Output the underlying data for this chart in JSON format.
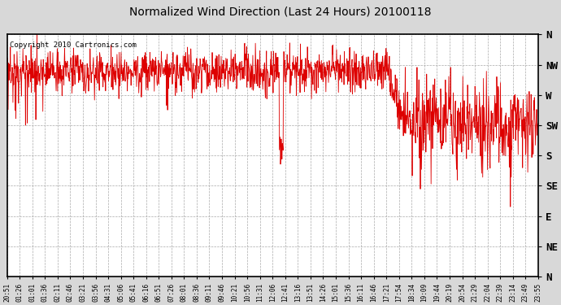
{
  "title": "Normalized Wind Direction (Last 24 Hours) 20100118",
  "copyright_text": "Copyright 2010 Cartronics.com",
  "background_color": "#d8d8d8",
  "plot_bg_color": "#ffffff",
  "line_color": "#dd0000",
  "line_width": 0.6,
  "ytick_labels": [
    "N",
    "NW",
    "W",
    "SW",
    "S",
    "SE",
    "E",
    "NE",
    "N"
  ],
  "ytick_values": [
    0,
    1,
    2,
    3,
    4,
    5,
    6,
    7,
    8
  ],
  "ylim": [
    0,
    8
  ],
  "xtick_labels": [
    "20:51",
    "01:26",
    "01:01",
    "01:36",
    "02:11",
    "02:46",
    "03:21",
    "03:56",
    "04:31",
    "05:06",
    "05:41",
    "06:16",
    "06:51",
    "07:26",
    "08:01",
    "08:36",
    "09:11",
    "09:46",
    "10:21",
    "10:56",
    "11:31",
    "12:06",
    "12:41",
    "13:16",
    "13:51",
    "14:26",
    "15:01",
    "15:36",
    "16:11",
    "16:46",
    "17:21",
    "17:54",
    "18:34",
    "19:09",
    "19:44",
    "20:19",
    "20:54",
    "21:29",
    "22:04",
    "22:39",
    "23:14",
    "23:49",
    "23:55"
  ],
  "grid_color": "#aaaaaa",
  "grid_linestyle": "--",
  "grid_linewidth": 0.5,
  "figsize": [
    6.9,
    3.75
  ],
  "dpi": 100
}
